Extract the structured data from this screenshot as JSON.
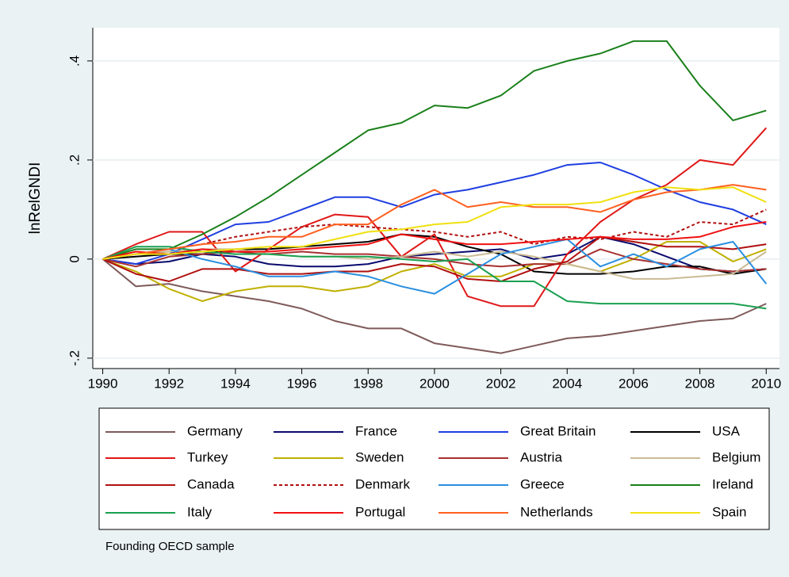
{
  "chart_data": {
    "type": "line",
    "y_label": "lnRelGNDI",
    "note": "Founding OECD sample",
    "x": [
      1990,
      1991,
      1992,
      1993,
      1994,
      1995,
      1996,
      1997,
      1998,
      1999,
      2000,
      2001,
      2002,
      2003,
      2004,
      2005,
      2006,
      2007,
      2008,
      2009,
      2010
    ],
    "xlim": [
      1989.7,
      2010.4
    ],
    "xticks": [
      1990,
      1992,
      1994,
      1996,
      1998,
      2000,
      2002,
      2004,
      2006,
      2008,
      2010
    ],
    "ylim": [
      -0.221,
      0.467
    ],
    "yticks": [
      {
        "value": -0.2,
        "label": "-.2"
      },
      0,
      {
        "value": 0.2,
        "label": ".2"
      },
      {
        "value": 0.4,
        "label": ".4"
      }
    ],
    "grid": true,
    "series": [
      {
        "name": "Germany",
        "color": "#7f5a5a",
        "values": [
          0,
          -0.055,
          -0.05,
          -0.065,
          -0.075,
          -0.085,
          -0.1,
          -0.125,
          -0.14,
          -0.14,
          -0.17,
          -0.18,
          -0.19,
          -0.175,
          -0.16,
          -0.155,
          -0.145,
          -0.135,
          -0.125,
          -0.12,
          -0.09
        ]
      },
      {
        "name": "France",
        "color": "#0a0a6e",
        "values": [
          0,
          -0.01,
          -0.005,
          0.01,
          0.005,
          -0.01,
          -0.015,
          -0.015,
          -0.01,
          0.005,
          0.01,
          0.015,
          0.02,
          0,
          0.01,
          0.045,
          0.03,
          0.005,
          -0.02,
          -0.025,
          -0.02
        ]
      },
      {
        "name": "Great Britain",
        "color": "#1f3fe0",
        "values": [
          0,
          -0.01,
          0.01,
          0.04,
          0.07,
          0.075,
          0.1,
          0.125,
          0.125,
          0.105,
          0.13,
          0.14,
          0.155,
          0.17,
          0.19,
          0.195,
          0.17,
          0.14,
          0.115,
          0.1,
          0.07
        ]
      },
      {
        "name": "USA",
        "color": "#000000",
        "values": [
          0,
          0.005,
          0.01,
          0.01,
          0.02,
          0.02,
          0.025,
          0.03,
          0.035,
          0.05,
          0.045,
          0.025,
          0.01,
          -0.025,
          -0.03,
          -0.03,
          -0.025,
          -0.015,
          -0.015,
          -0.03,
          -0.02
        ]
      },
      {
        "name": "Turkey",
        "color": "#e01818",
        "values": [
          0,
          0.03,
          0.055,
          0.055,
          -0.025,
          0.02,
          0.065,
          0.09,
          0.085,
          0.005,
          0.05,
          -0.075,
          -0.095,
          -0.095,
          0.01,
          0.075,
          0.12,
          0.15,
          0.2,
          0.19,
          0.265
        ]
      },
      {
        "name": "Sweden",
        "color": "#c0b000",
        "values": [
          0,
          -0.025,
          -0.06,
          -0.085,
          -0.065,
          -0.055,
          -0.055,
          -0.065,
          -0.055,
          -0.025,
          -0.01,
          -0.035,
          -0.035,
          -0.01,
          -0.01,
          -0.025,
          0,
          0.035,
          0.035,
          -0.005,
          0.02
        ]
      },
      {
        "name": "Austria",
        "color": "#a83030",
        "values": [
          0,
          -0.015,
          0.005,
          0.01,
          0.015,
          0.01,
          0.015,
          0.01,
          0.01,
          0.005,
          0,
          -0.01,
          -0.015,
          -0.01,
          -0.01,
          0.02,
          0,
          -0.01,
          -0.02,
          -0.025,
          -0.02
        ]
      },
      {
        "name": "Belgium",
        "color": "#cbbb94",
        "values": [
          0,
          0.01,
          0.015,
          0.02,
          0.02,
          0.01,
          0.005,
          0.005,
          0,
          0.005,
          0.015,
          0.005,
          0.015,
          0.005,
          -0.01,
          -0.025,
          -0.04,
          -0.04,
          -0.035,
          -0.03,
          0.015
        ]
      },
      {
        "name": "Canada",
        "color": "#b01010",
        "values": [
          0,
          -0.03,
          -0.045,
          -0.02,
          -0.02,
          -0.03,
          -0.03,
          -0.025,
          -0.025,
          -0.01,
          -0.015,
          -0.04,
          -0.045,
          -0.02,
          -0.005,
          0.045,
          0.035,
          0.025,
          0.025,
          0.02,
          0.03
        ]
      },
      {
        "name": "Denmark",
        "color": "#b01010",
        "dashed": true,
        "values": [
          0,
          0.01,
          0.02,
          0.03,
          0.045,
          0.055,
          0.065,
          0.07,
          0.065,
          0.06,
          0.055,
          0.045,
          0.055,
          0.03,
          0.045,
          0.04,
          0.055,
          0.045,
          0.075,
          0.07,
          0.1
        ]
      },
      {
        "name": "Greece",
        "color": "#2a8fe0",
        "values": [
          0,
          0.01,
          0.02,
          0,
          -0.015,
          -0.035,
          -0.035,
          -0.025,
          -0.035,
          -0.055,
          -0.07,
          -0.03,
          0.01,
          0.025,
          0.04,
          -0.015,
          0.01,
          -0.015,
          0.02,
          0.035,
          -0.05
        ]
      },
      {
        "name": "Ireland",
        "color": "#1a801a",
        "values": [
          0,
          0.02,
          0.02,
          0.05,
          0.085,
          0.125,
          0.17,
          0.215,
          0.26,
          0.275,
          0.31,
          0.305,
          0.33,
          0.38,
          0.4,
          0.415,
          0.44,
          0.44,
          0.35,
          0.28,
          0.3
        ]
      },
      {
        "name": "Italy",
        "color": "#1aa050",
        "values": [
          0,
          0.025,
          0.025,
          0.015,
          0.01,
          0.01,
          0.005,
          0.005,
          0.005,
          0,
          -0.005,
          0,
          -0.045,
          -0.045,
          -0.085,
          -0.09,
          -0.09,
          -0.09,
          -0.09,
          -0.09,
          -0.1
        ]
      },
      {
        "name": "Portugal",
        "color": "#f01010",
        "values": [
          0,
          0.015,
          0.01,
          0.02,
          0.015,
          0.015,
          0.02,
          0.025,
          0.03,
          0.05,
          0.04,
          0.03,
          0.03,
          0.035,
          0.04,
          0.045,
          0.04,
          0.04,
          0.045,
          0.065,
          0.075
        ]
      },
      {
        "name": "Netherlands",
        "color": "#ff6020",
        "values": [
          0,
          0.01,
          0.02,
          0.03,
          0.035,
          0.045,
          0.045,
          0.07,
          0.07,
          0.11,
          0.14,
          0.105,
          0.115,
          0.105,
          0.105,
          0.095,
          0.12,
          0.135,
          0.14,
          0.15,
          0.14
        ]
      },
      {
        "name": "Spain",
        "color": "#f0e010",
        "values": [
          0,
          0.01,
          0.01,
          0.015,
          0.02,
          0.025,
          0.025,
          0.04,
          0.055,
          0.06,
          0.07,
          0.075,
          0.105,
          0.11,
          0.11,
          0.115,
          0.135,
          0.145,
          0.14,
          0.145,
          0.115
        ]
      }
    ]
  }
}
